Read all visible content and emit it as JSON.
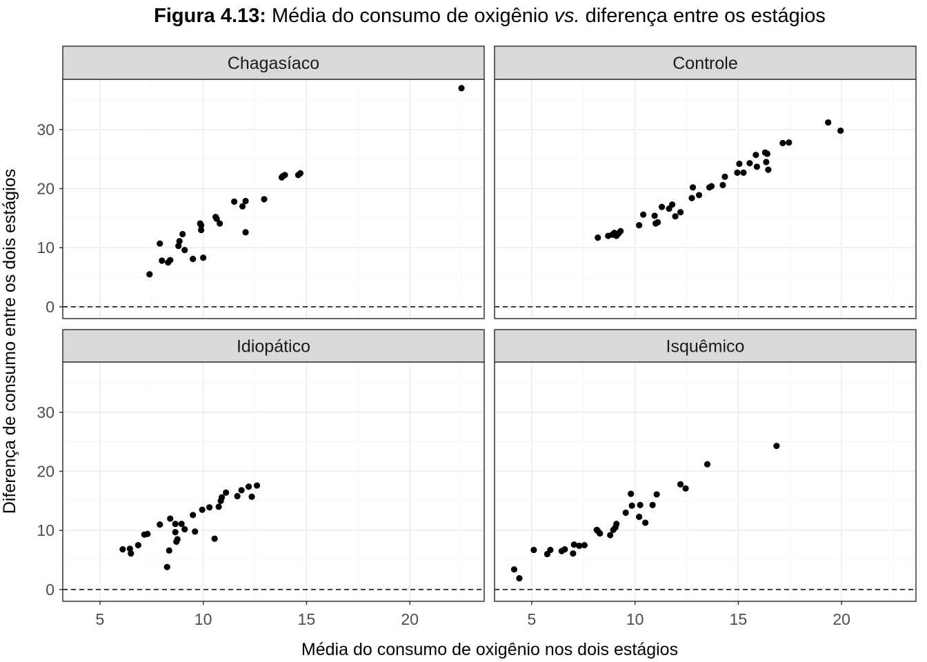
{
  "figure": {
    "title_bold": "Figura 4.13:",
    "title_rest_1": " Média do consumo de oxigênio ",
    "title_italic": "vs.",
    "title_rest_2": " diferença entre os estágios"
  },
  "chart_data": {
    "type": "scatter",
    "facet_layout": "2x2",
    "xlabel": "Média do consumo de oxigênio nos dois estágios",
    "ylabel": "Diferença de consumo entre os dois estágios",
    "xlim": [
      3.2,
      23.6
    ],
    "ylim": [
      -2,
      38.5
    ],
    "x_ticks": [
      5,
      10,
      15,
      20
    ],
    "y_ticks": [
      0,
      10,
      20,
      30
    ],
    "grid": true,
    "reference_line": {
      "y": 0,
      "style": "dashed"
    },
    "colors": {
      "points": "#000000",
      "strip": "#d9d9d9",
      "grid_major": "#ebebeb",
      "grid_minor": "#f5f5f5",
      "border": "#333333"
    },
    "panels": [
      {
        "name": "Chagasíaco",
        "points": [
          [
            7.4,
            5.5
          ],
          [
            7.9,
            10.7
          ],
          [
            8.0,
            7.8
          ],
          [
            8.3,
            7.5
          ],
          [
            8.4,
            7.9
          ],
          [
            8.8,
            10.3
          ],
          [
            8.85,
            11.1
          ],
          [
            9.0,
            12.3
          ],
          [
            9.1,
            9.6
          ],
          [
            9.5,
            8.1
          ],
          [
            9.85,
            14.1
          ],
          [
            9.9,
            13.0
          ],
          [
            9.9,
            13.8
          ],
          [
            10.0,
            8.3
          ],
          [
            10.6,
            15.2
          ],
          [
            10.65,
            14.9
          ],
          [
            10.8,
            14.1
          ],
          [
            11.5,
            17.8
          ],
          [
            11.9,
            17.0
          ],
          [
            12.05,
            17.9
          ],
          [
            12.05,
            12.6
          ],
          [
            12.95,
            18.2
          ],
          [
            13.8,
            21.9
          ],
          [
            13.85,
            22.1
          ],
          [
            13.95,
            22.3
          ],
          [
            14.6,
            22.3
          ],
          [
            14.7,
            22.6
          ],
          [
            22.5,
            37.0
          ]
        ]
      },
      {
        "name": "Controle",
        "points": [
          [
            8.2,
            11.7
          ],
          [
            8.7,
            12.0
          ],
          [
            8.9,
            12.2
          ],
          [
            9.0,
            12.5
          ],
          [
            9.1,
            12.0
          ],
          [
            9.2,
            12.4
          ],
          [
            9.3,
            12.8
          ],
          [
            10.2,
            13.8
          ],
          [
            10.4,
            15.6
          ],
          [
            10.95,
            15.4
          ],
          [
            11.0,
            14.1
          ],
          [
            11.1,
            14.3
          ],
          [
            11.3,
            16.9
          ],
          [
            11.65,
            16.6
          ],
          [
            11.8,
            17.3
          ],
          [
            11.95,
            15.3
          ],
          [
            12.2,
            16.0
          ],
          [
            12.75,
            18.4
          ],
          [
            12.8,
            20.2
          ],
          [
            13.1,
            18.9
          ],
          [
            13.6,
            20.2
          ],
          [
            13.7,
            20.4
          ],
          [
            14.25,
            20.6
          ],
          [
            14.35,
            22.0
          ],
          [
            14.95,
            22.7
          ],
          [
            15.05,
            24.2
          ],
          [
            15.25,
            22.7
          ],
          [
            15.55,
            24.3
          ],
          [
            15.85,
            25.7
          ],
          [
            15.9,
            23.7
          ],
          [
            16.3,
            26.1
          ],
          [
            16.35,
            24.5
          ],
          [
            16.4,
            25.9
          ],
          [
            16.45,
            23.2
          ],
          [
            17.15,
            27.7
          ],
          [
            17.45,
            27.8
          ],
          [
            19.35,
            31.2
          ],
          [
            19.95,
            29.8
          ]
        ]
      },
      {
        "name": "Idiopático",
        "points": [
          [
            6.1,
            6.8
          ],
          [
            6.45,
            6.9
          ],
          [
            6.5,
            6.1
          ],
          [
            6.85,
            7.5
          ],
          [
            7.15,
            9.3
          ],
          [
            7.3,
            9.4
          ],
          [
            7.9,
            11.0
          ],
          [
            8.25,
            3.8
          ],
          [
            8.35,
            6.6
          ],
          [
            8.4,
            12.0
          ],
          [
            8.65,
            11.1
          ],
          [
            8.65,
            9.7
          ],
          [
            8.7,
            8.1
          ],
          [
            8.75,
            8.5
          ],
          [
            8.95,
            11.1
          ],
          [
            9.1,
            10.2
          ],
          [
            9.5,
            12.6
          ],
          [
            9.6,
            9.8
          ],
          [
            9.95,
            13.5
          ],
          [
            10.3,
            13.9
          ],
          [
            10.55,
            8.6
          ],
          [
            10.75,
            14.0
          ],
          [
            10.85,
            15.0
          ],
          [
            10.9,
            15.6
          ],
          [
            11.1,
            16.4
          ],
          [
            11.65,
            15.8
          ],
          [
            11.85,
            16.8
          ],
          [
            12.2,
            17.4
          ],
          [
            12.35,
            15.7
          ],
          [
            12.6,
            17.6
          ]
        ]
      },
      {
        "name": "Isquêmico",
        "points": [
          [
            4.15,
            3.4
          ],
          [
            4.4,
            1.9
          ],
          [
            5.1,
            6.7
          ],
          [
            5.75,
            6.0
          ],
          [
            5.9,
            6.7
          ],
          [
            6.45,
            6.5
          ],
          [
            6.6,
            6.8
          ],
          [
            7.0,
            6.1
          ],
          [
            7.05,
            7.6
          ],
          [
            7.3,
            7.4
          ],
          [
            7.55,
            7.5
          ],
          [
            8.15,
            10.1
          ],
          [
            8.2,
            9.9
          ],
          [
            8.3,
            9.5
          ],
          [
            8.8,
            9.2
          ],
          [
            8.95,
            10.1
          ],
          [
            9.05,
            10.5
          ],
          [
            9.1,
            11.1
          ],
          [
            9.55,
            13.0
          ],
          [
            9.8,
            16.2
          ],
          [
            9.85,
            14.2
          ],
          [
            10.2,
            12.3
          ],
          [
            10.25,
            14.3
          ],
          [
            10.5,
            11.3
          ],
          [
            10.85,
            14.3
          ],
          [
            11.05,
            16.1
          ],
          [
            12.2,
            17.8
          ],
          [
            12.45,
            17.1
          ],
          [
            13.5,
            21.2
          ],
          [
            16.85,
            24.3
          ]
        ]
      }
    ]
  }
}
